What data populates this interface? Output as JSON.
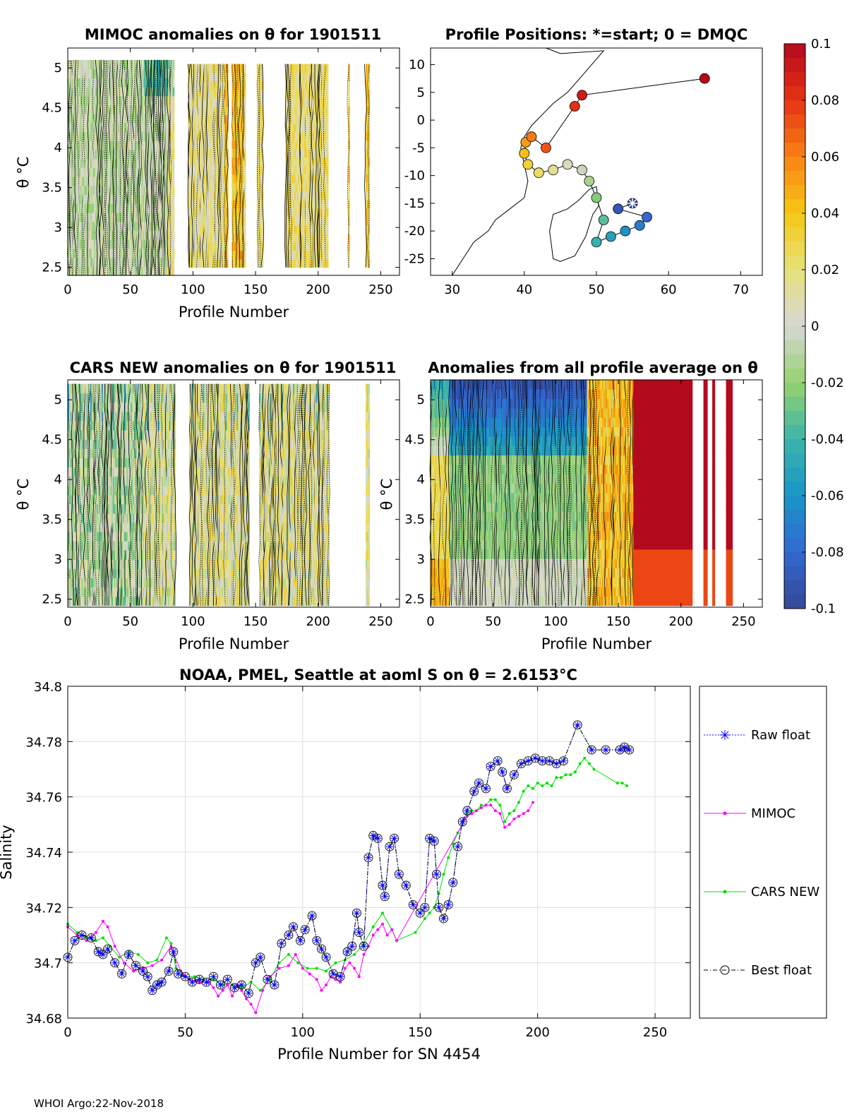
{
  "panels": {
    "mimoc": {
      "title": "MIMOC anomalies on θ  for 1901511",
      "xlabel": "Profile Number",
      "ylabel": "θ °C"
    },
    "positions": {
      "title": "Profile Positions: *=start; 0 = DMQC"
    },
    "cars": {
      "title": "CARS NEW anomalies on θ for 1901511",
      "xlabel": "Profile Number",
      "ylabel": "θ °C"
    },
    "allavg": {
      "title": "Anomalies from all profile average on θ",
      "xlabel": "Profile Number",
      "ylabel": "θ °C"
    }
  },
  "footer": "WHOI Argo:22-Nov-2018",
  "chart_data": [
    {
      "type": "heatmap",
      "title": "MIMOC anomalies on θ  for 1901511",
      "xlabel": "Profile Number",
      "ylabel": "θ °C",
      "xlim": [
        0,
        265
      ],
      "ylim": [
        2.4,
        5.25
      ],
      "xticks": [
        0,
        50,
        100,
        150,
        200,
        250
      ],
      "yticks": [
        2.5,
        3,
        3.5,
        4,
        4.5,
        5
      ]
    },
    {
      "type": "scatter",
      "title": "Profile Positions: *=start; 0 = DMQC",
      "xlim": [
        27,
        73
      ],
      "ylim": [
        -28,
        13
      ],
      "xticks": [
        30,
        40,
        50,
        60,
        70
      ],
      "yticks": [
        10,
        5,
        0,
        -5,
        -10,
        -15,
        -20,
        -25
      ],
      "start": [
        55,
        -15
      ],
      "track_lon": [
        55,
        53,
        57,
        56,
        54,
        52,
        50,
        51,
        50,
        49,
        48,
        46,
        44,
        42,
        40.5,
        40,
        40.2,
        41,
        43,
        47,
        48,
        65
      ],
      "track_lat": [
        -15,
        -16,
        -17.5,
        -19,
        -20,
        -21,
        -22,
        -18,
        -14,
        -11,
        -9,
        -8,
        -9,
        -9.5,
        -8,
        -6,
        -4,
        -3,
        -5,
        2.5,
        4.5,
        7.5
      ]
    },
    {
      "type": "heatmap",
      "title": "CARS NEW anomalies on θ for 1901511",
      "xlabel": "Profile Number",
      "ylabel": "θ °C",
      "xlim": [
        0,
        265
      ],
      "ylim": [
        2.4,
        5.25
      ],
      "xticks": [
        0,
        50,
        100,
        150,
        200,
        250
      ],
      "yticks": [
        2.5,
        3,
        3.5,
        4,
        4.5,
        5
      ]
    },
    {
      "type": "heatmap",
      "title": "Anomalies from all profile average on θ",
      "xlabel": "Profile Number",
      "ylabel": "θ °C",
      "xlim": [
        0,
        265
      ],
      "ylim": [
        2.4,
        5.25
      ],
      "xticks": [
        0,
        50,
        100,
        150,
        200,
        250
      ],
      "yticks": [
        2.5,
        3,
        3.5,
        4,
        4.5,
        5
      ]
    },
    {
      "type": "colorbar",
      "range": [
        -0.1,
        0.1
      ],
      "ticks": [
        "0.1",
        "0.08",
        "0.06",
        "0.04",
        "0.02",
        "0",
        "-0.02",
        "-0.04",
        "-0.06",
        "-0.08",
        "-0.1"
      ],
      "tick_values": [
        0.1,
        0.08,
        0.06,
        0.04,
        0.02,
        0,
        -0.02,
        -0.04,
        -0.06,
        -0.08,
        -0.1
      ]
    },
    {
      "type": "line",
      "title": "NOAA, PMEL, Seattle at aoml S on θ = 2.6153°C",
      "xlabel": "Profile Number for SN 4454",
      "ylabel": "Salinity",
      "xlim": [
        0,
        265
      ],
      "ylim": [
        34.68,
        34.8
      ],
      "xticks": [
        0,
        50,
        100,
        150,
        200,
        250
      ],
      "yticks": [
        34.68,
        34.7,
        34.72,
        34.74,
        34.76,
        34.78,
        34.8
      ],
      "ytick_labels": [
        "34.68",
        "34.7",
        "34.72",
        "34.74",
        "34.76",
        "34.78",
        "34.8"
      ],
      "grid": true,
      "legend": {
        "position": "outside-right",
        "entries": [
          "Raw float",
          "MIMOC",
          "CARS NEW",
          "Best float"
        ]
      },
      "series": [
        {
          "name": "Best float",
          "color": "#000000",
          "x": [
            0,
            3,
            6,
            10,
            13,
            15,
            17,
            20,
            23,
            26,
            29,
            32,
            34,
            36,
            38,
            40,
            43,
            45,
            47,
            50,
            53,
            56,
            59,
            62,
            65,
            68,
            71,
            74,
            77,
            80,
            82,
            85,
            88,
            91,
            94,
            96,
            99,
            101,
            104,
            106,
            108,
            110,
            113,
            116,
            119,
            121,
            123,
            124,
            126,
            128,
            130,
            132,
            134,
            135,
            137,
            139,
            141,
            144,
            147,
            150,
            152,
            154,
            156,
            157,
            158,
            160,
            162,
            164,
            166,
            168,
            170,
            173,
            175,
            178,
            180,
            183,
            185,
            187,
            190,
            193,
            196,
            199,
            202,
            205,
            208,
            211,
            217,
            223,
            229,
            235,
            237,
            239
          ],
          "y": [
            34.702,
            34.708,
            34.71,
            34.709,
            34.704,
            34.703,
            34.705,
            34.7,
            34.696,
            34.703,
            34.699,
            34.697,
            34.695,
            34.69,
            34.692,
            34.693,
            34.697,
            34.704,
            34.696,
            34.695,
            34.693,
            34.694,
            34.693,
            34.695,
            34.692,
            34.694,
            34.691,
            34.692,
            34.689,
            34.7,
            34.702,
            34.694,
            34.692,
            34.707,
            34.71,
            34.713,
            34.708,
            34.712,
            34.717,
            34.708,
            34.705,
            34.702,
            34.696,
            34.695,
            34.704,
            34.706,
            34.718,
            34.711,
            34.706,
            34.738,
            34.746,
            34.745,
            34.728,
            34.724,
            34.742,
            34.745,
            34.732,
            34.728,
            34.721,
            34.718,
            34.72,
            34.745,
            34.744,
            34.732,
            34.72,
            34.716,
            34.721,
            34.729,
            34.742,
            34.751,
            34.755,
            34.762,
            34.765,
            34.763,
            34.771,
            34.773,
            34.769,
            34.763,
            34.768,
            34.772,
            34.773,
            34.774,
            34.773,
            34.773,
            34.772,
            34.773,
            34.786,
            34.777,
            34.777,
            34.777,
            34.778,
            34.777
          ]
        },
        {
          "name": "Raw float",
          "color": "#0000ff",
          "x": [
            0,
            3,
            6,
            10,
            13,
            15,
            17,
            20,
            23,
            26,
            29,
            32,
            34,
            36,
            38,
            40,
            43,
            45,
            47,
            50,
            53,
            56,
            59,
            62,
            65,
            68,
            71,
            74,
            77,
            80,
            82,
            85,
            88,
            91,
            94,
            96,
            99,
            101,
            104,
            106,
            108,
            110,
            113,
            116,
            119,
            121,
            123,
            124,
            126,
            128,
            130,
            132,
            134,
            135,
            137,
            139,
            141,
            144,
            147,
            150,
            152,
            154,
            156,
            157,
            158,
            160,
            162,
            164,
            166,
            168,
            170,
            173,
            175,
            178,
            180,
            183,
            185,
            187,
            190,
            193,
            196,
            199,
            202,
            205,
            208,
            211,
            217,
            223,
            229,
            235,
            237,
            239
          ],
          "y": [
            34.702,
            34.708,
            34.71,
            34.709,
            34.704,
            34.703,
            34.705,
            34.7,
            34.696,
            34.703,
            34.699,
            34.697,
            34.695,
            34.69,
            34.692,
            34.693,
            34.697,
            34.704,
            34.696,
            34.695,
            34.693,
            34.694,
            34.693,
            34.695,
            34.692,
            34.694,
            34.691,
            34.692,
            34.689,
            34.7,
            34.702,
            34.694,
            34.692,
            34.707,
            34.71,
            34.713,
            34.708,
            34.712,
            34.717,
            34.708,
            34.705,
            34.702,
            34.696,
            34.695,
            34.704,
            34.706,
            34.718,
            34.711,
            34.706,
            34.738,
            34.746,
            34.745,
            34.728,
            34.724,
            34.742,
            34.745,
            34.732,
            34.728,
            34.721,
            34.718,
            34.72,
            34.745,
            34.744,
            34.732,
            34.72,
            34.716,
            34.721,
            34.729,
            34.742,
            34.751,
            34.755,
            34.762,
            34.765,
            34.763,
            34.771,
            34.773,
            34.769,
            34.763,
            34.768,
            34.772,
            34.773,
            34.774,
            34.773,
            34.773,
            34.772,
            34.773,
            34.786,
            34.777,
            34.777,
            34.777,
            34.778,
            34.777
          ]
        },
        {
          "name": "MIMOC",
          "color": "#ff00ff",
          "x": [
            0,
            4,
            8,
            12,
            15,
            17,
            20,
            24,
            28,
            32,
            36,
            40,
            44,
            48,
            52,
            56,
            60,
            62,
            64,
            66,
            68,
            70,
            72,
            74,
            76,
            78,
            80,
            83,
            86,
            90,
            94,
            97,
            100,
            103,
            106,
            108,
            110,
            112,
            114,
            116,
            118,
            120,
            122,
            124,
            126,
            128,
            130,
            132,
            134,
            136,
            138,
            140,
            170,
            172,
            174,
            176,
            178,
            180,
            182,
            184,
            186,
            188,
            190,
            192,
            194,
            196,
            198
          ],
          "y": [
            34.713,
            34.71,
            34.708,
            34.711,
            34.715,
            34.713,
            34.706,
            34.7,
            34.697,
            34.698,
            34.699,
            34.701,
            34.706,
            34.697,
            34.694,
            34.693,
            34.693,
            34.691,
            34.688,
            34.69,
            34.692,
            34.688,
            34.692,
            34.69,
            34.687,
            34.685,
            34.682,
            34.69,
            34.695,
            34.698,
            34.699,
            34.703,
            34.698,
            34.696,
            34.694,
            34.69,
            34.692,
            34.695,
            34.694,
            34.693,
            34.698,
            34.7,
            34.698,
            34.695,
            34.703,
            34.706,
            34.71,
            34.712,
            34.714,
            34.71,
            34.712,
            34.708,
            34.753,
            34.754,
            34.755,
            34.756,
            34.757,
            34.757,
            34.755,
            34.754,
            34.749,
            34.75,
            34.752,
            34.753,
            34.754,
            34.755,
            34.758
          ]
        },
        {
          "name": "CARS NEW",
          "color": "#00e000",
          "x": [
            0,
            4,
            8,
            12,
            15,
            18,
            22,
            26,
            30,
            34,
            38,
            42,
            44,
            46,
            50,
            54,
            58,
            62,
            66,
            70,
            74,
            78,
            82,
            86,
            90,
            94,
            98,
            102,
            106,
            110,
            114,
            118,
            122,
            126,
            130,
            134,
            138,
            140,
            148,
            152,
            154,
            156,
            158,
            160,
            162,
            164,
            166,
            168,
            170,
            172,
            174,
            176,
            178,
            180,
            182,
            184,
            186,
            188,
            190,
            192,
            194,
            196,
            198,
            200,
            202,
            204,
            206,
            208,
            210,
            212,
            214,
            216,
            218,
            220,
            222,
            224,
            234,
            236,
            238
          ],
          "y": [
            34.714,
            34.711,
            34.709,
            34.708,
            34.709,
            34.706,
            34.702,
            34.704,
            34.703,
            34.7,
            34.701,
            34.709,
            34.707,
            34.698,
            34.695,
            34.695,
            34.694,
            34.694,
            34.692,
            34.692,
            34.691,
            34.693,
            34.69,
            34.694,
            34.7,
            34.703,
            34.7,
            34.698,
            34.698,
            34.697,
            34.7,
            34.701,
            34.703,
            34.707,
            34.713,
            34.718,
            34.712,
            34.708,
            34.711,
            34.716,
            34.718,
            34.72,
            34.725,
            34.732,
            34.738,
            34.743,
            34.747,
            34.75,
            34.754,
            34.755,
            34.755,
            34.757,
            34.757,
            34.759,
            34.759,
            34.757,
            34.751,
            34.754,
            34.755,
            34.758,
            34.762,
            34.764,
            34.763,
            34.765,
            34.764,
            34.765,
            34.764,
            34.767,
            34.767,
            34.768,
            34.768,
            34.769,
            34.772,
            34.774,
            34.772,
            34.77,
            34.765,
            34.765,
            34.764
          ]
        }
      ]
    }
  ]
}
